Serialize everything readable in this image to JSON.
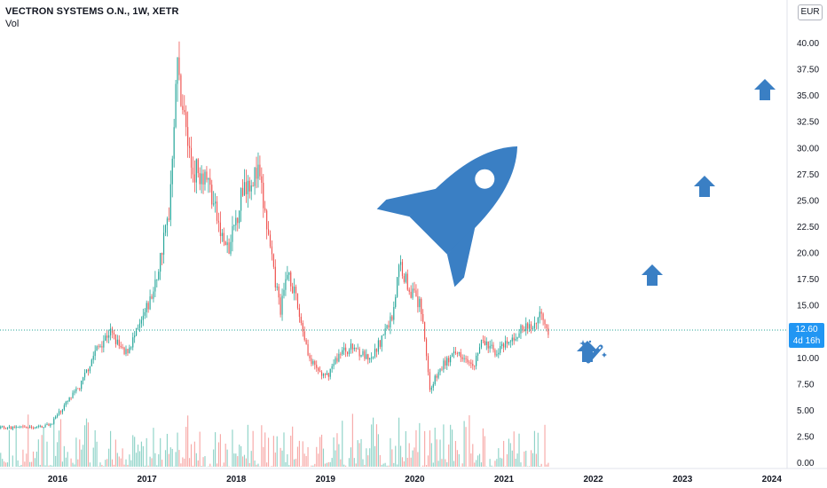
{
  "header": {
    "title": "VECTRON SYSTEMS O.N., 1W, XETR",
    "volume_label": "Vol",
    "currency": "EUR"
  },
  "last_price": {
    "value": "12.60",
    "countdown": "4d 16h"
  },
  "colors": {
    "up": "#26a69a",
    "down": "#ef5350",
    "up_volume": "#8fd3c8",
    "down_volume": "#f7a9a7",
    "last_price_line": "#26a69a",
    "badge": "#2196f3",
    "drawing": "#3a7fc4"
  },
  "drawings": [
    "rocket-icon",
    "up-arrow-icon",
    "up-arrow-icon",
    "up-arrow-icon",
    "up-arrow-icon",
    "magic-wand-icon"
  ],
  "chart_data": {
    "type": "candlestick",
    "interval": "1W",
    "y_axis_ticks": [
      "0.00",
      "2.50",
      "5.00",
      "7.50",
      "10.00",
      "12.50",
      "15.00",
      "17.50",
      "20.00",
      "22.50",
      "25.00",
      "27.50",
      "30.00",
      "32.50",
      "35.00",
      "37.50",
      "40.00"
    ],
    "x_axis_ticks": [
      "2016",
      "2017",
      "2018",
      "2019",
      "2020",
      "2021",
      "2022",
      "2023",
      "2024"
    ],
    "ylim": [
      0,
      42.5
    ],
    "xlim": [
      "2015-06",
      "2024-06"
    ],
    "grid": false,
    "close_series": [
      [
        "2015-10",
        3.3
      ],
      [
        "2015-12",
        3.6
      ],
      [
        "2016-02",
        5.5
      ],
      [
        "2016-04",
        7.2
      ],
      [
        "2016-06",
        10.5
      ],
      [
        "2016-08",
        12.5
      ],
      [
        "2016-10",
        10.2
      ],
      [
        "2016-12",
        12.8
      ],
      [
        "2017-02",
        16.5
      ],
      [
        "2017-04",
        24.0
      ],
      [
        "2017-05",
        38.0
      ],
      [
        "2017-06",
        33.0
      ],
      [
        "2017-07",
        28.0
      ],
      [
        "2017-09",
        27.5
      ],
      [
        "2017-11",
        21.5
      ],
      [
        "2017-12",
        20.0
      ],
      [
        "2018-02",
        26.5
      ],
      [
        "2018-04",
        27.5
      ],
      [
        "2018-05",
        23.0
      ],
      [
        "2018-06",
        18.0
      ],
      [
        "2018-07",
        14.5
      ],
      [
        "2018-08",
        18.5
      ],
      [
        "2018-10",
        12.5
      ],
      [
        "2018-11",
        9.5
      ],
      [
        "2019-01",
        8.0
      ],
      [
        "2019-03",
        10.5
      ],
      [
        "2019-05",
        11.0
      ],
      [
        "2019-07",
        9.5
      ],
      [
        "2019-08",
        11.0
      ],
      [
        "2019-10",
        14.0
      ],
      [
        "2019-11",
        19.0
      ],
      [
        "2019-12",
        17.0
      ],
      [
        "2020-02",
        14.5
      ],
      [
        "2020-03",
        7.0
      ],
      [
        "2020-05",
        9.5
      ],
      [
        "2020-07",
        10.5
      ],
      [
        "2020-09",
        9.5
      ],
      [
        "2020-10",
        11.5
      ],
      [
        "2020-12",
        10.5
      ],
      [
        "2021-02",
        11.5
      ],
      [
        "2021-03",
        12.5
      ],
      [
        "2021-05",
        13.0
      ],
      [
        "2021-06",
        14.5
      ],
      [
        "2021-07",
        12.6
      ]
    ],
    "volume": {
      "label": "Vol",
      "relative_max_in_2019": 1.0
    }
  }
}
